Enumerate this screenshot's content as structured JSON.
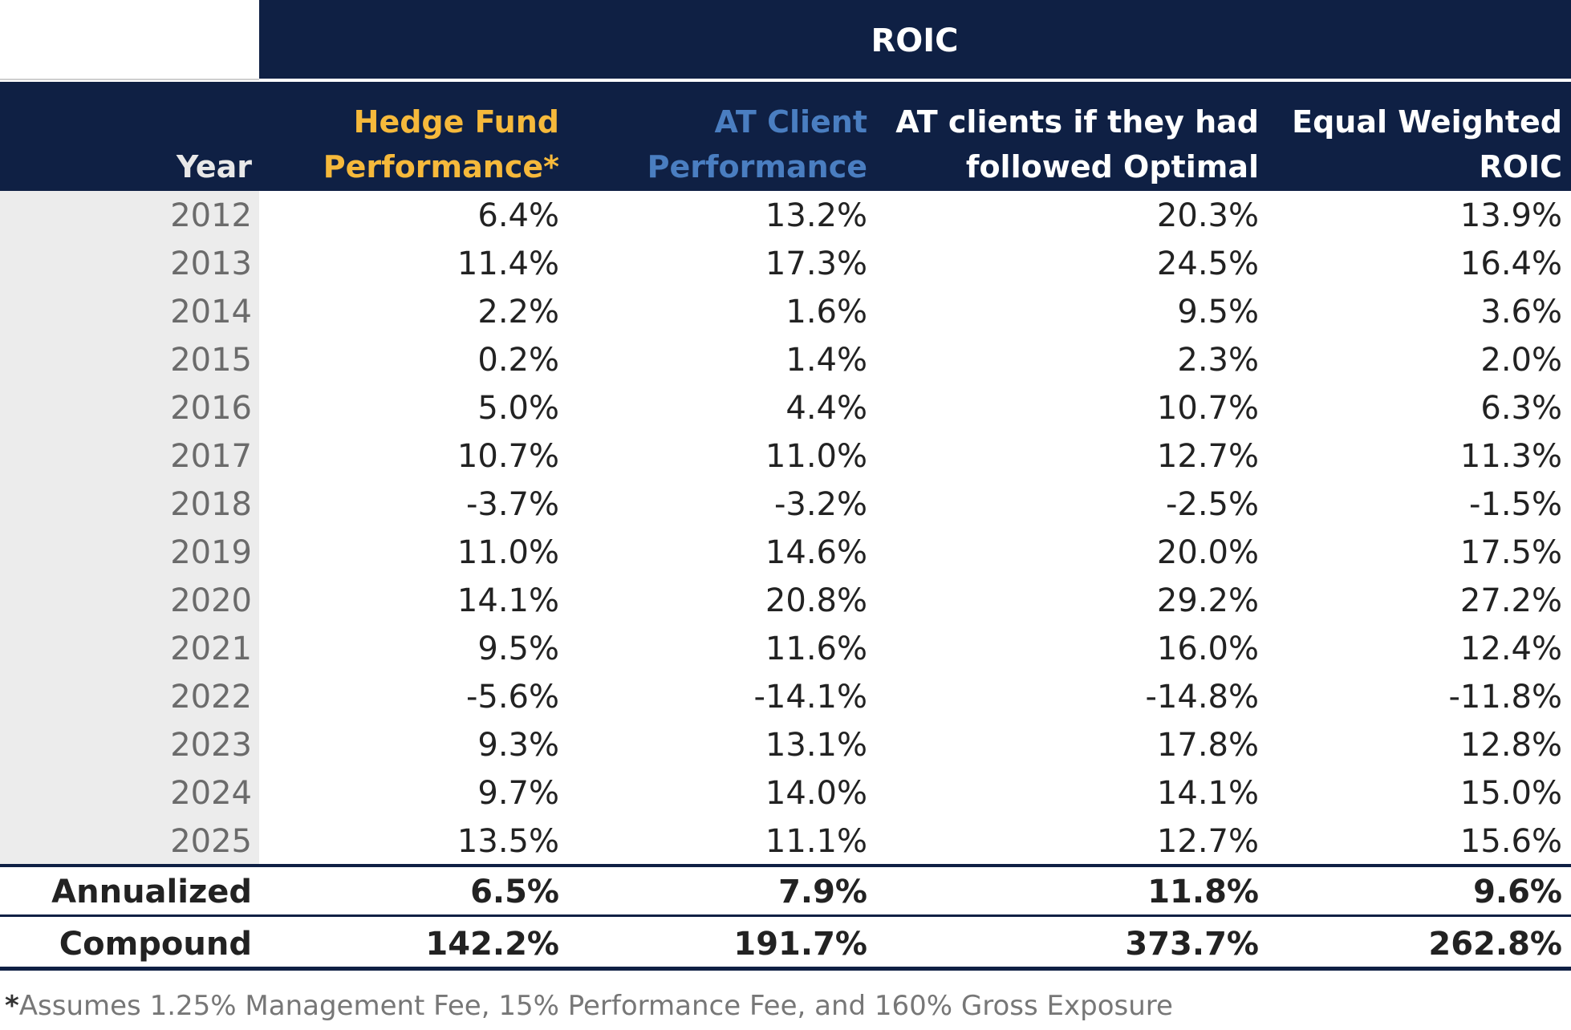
{
  "title": "ROIC",
  "chart_data": {
    "type": "table",
    "title": "ROIC",
    "columns": [
      {
        "lines": [
          "Year"
        ],
        "color": "#e8e8e8"
      },
      {
        "lines": [
          "Hedge Fund",
          "Performance*"
        ],
        "color": "#f6b93b"
      },
      {
        "lines": [
          "AT Client",
          "Performance"
        ],
        "color": "#4a7ec1"
      },
      {
        "lines": [
          "AT clients if they had",
          "followed Optimal"
        ],
        "color": "#ffffff"
      },
      {
        "lines": [
          "Equal Weighted",
          "ROIC"
        ],
        "color": "#ffffff"
      }
    ],
    "rows": [
      {
        "year": "2012",
        "values": [
          "6.4%",
          "13.2%",
          "20.3%",
          "13.9%"
        ]
      },
      {
        "year": "2013",
        "values": [
          "11.4%",
          "17.3%",
          "24.5%",
          "16.4%"
        ]
      },
      {
        "year": "2014",
        "values": [
          "2.2%",
          "1.6%",
          "9.5%",
          "3.6%"
        ]
      },
      {
        "year": "2015",
        "values": [
          "0.2%",
          "1.4%",
          "2.3%",
          "2.0%"
        ]
      },
      {
        "year": "2016",
        "values": [
          "5.0%",
          "4.4%",
          "10.7%",
          "6.3%"
        ]
      },
      {
        "year": "2017",
        "values": [
          "10.7%",
          "11.0%",
          "12.7%",
          "11.3%"
        ]
      },
      {
        "year": "2018",
        "values": [
          "-3.7%",
          "-3.2%",
          "-2.5%",
          "-1.5%"
        ]
      },
      {
        "year": "2019",
        "values": [
          "11.0%",
          "14.6%",
          "20.0%",
          "17.5%"
        ]
      },
      {
        "year": "2020",
        "values": [
          "14.1%",
          "20.8%",
          "29.2%",
          "27.2%"
        ]
      },
      {
        "year": "2021",
        "values": [
          "9.5%",
          "11.6%",
          "16.0%",
          "12.4%"
        ]
      },
      {
        "year": "2022",
        "values": [
          "-5.6%",
          "-14.1%",
          "-14.8%",
          "-11.8%"
        ]
      },
      {
        "year": "2023",
        "values": [
          "9.3%",
          "13.1%",
          "17.8%",
          "12.8%"
        ]
      },
      {
        "year": "2024",
        "values": [
          "9.7%",
          "14.0%",
          "14.1%",
          "15.0%"
        ]
      },
      {
        "year": "2025",
        "values": [
          "13.5%",
          "11.1%",
          "12.7%",
          "15.6%"
        ]
      }
    ],
    "summary": [
      {
        "label": "Annualized",
        "values": [
          "6.5%",
          "7.9%",
          "11.8%",
          "9.6%"
        ]
      },
      {
        "label": "Compound",
        "values": [
          "142.2%",
          "191.7%",
          "373.7%",
          "262.8%"
        ]
      }
    ],
    "footnote": {
      "marker": "*",
      "text": "Assumes 1.25% Management Fee, 15% Performance Fee, and 160% Gross Exposure"
    }
  },
  "colors": {
    "navy": "#0f2044",
    "year_bg": "#ececec",
    "year_text": "#6b6b6b",
    "body_text": "#222222",
    "footnote_text": "#777777"
  }
}
